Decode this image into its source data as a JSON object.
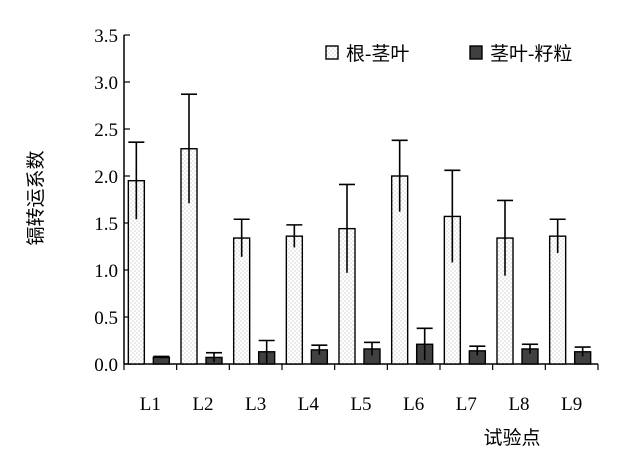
{
  "chart_data": {
    "type": "bar",
    "title": "",
    "xlabel": "试验点",
    "ylabel": "镉转运系数",
    "categories": [
      "L1",
      "L2",
      "L3",
      "L4",
      "L5",
      "L6",
      "L7",
      "L8",
      "L9"
    ],
    "ylim": [
      0,
      3.5
    ],
    "yticks": [
      "0.0",
      "0.5",
      "1.0",
      "1.5",
      "2.0",
      "2.5",
      "3.0",
      "3.5"
    ],
    "grid": false,
    "legend_position": "top-right",
    "series": [
      {
        "name": "根-茎叶",
        "color": "#ffffff",
        "pattern": "dotted",
        "values": [
          1.95,
          2.29,
          1.34,
          1.36,
          1.44,
          2.0,
          1.57,
          1.34,
          1.36
        ],
        "error": [
          0.41,
          0.58,
          0.2,
          0.12,
          0.47,
          0.38,
          0.49,
          0.4,
          0.18
        ]
      },
      {
        "name": "茎叶-籽粒",
        "color": "#404040",
        "pattern": "solid",
        "values": [
          0.07,
          0.07,
          0.13,
          0.15,
          0.16,
          0.21,
          0.14,
          0.16,
          0.13
        ],
        "error": [
          0.01,
          0.05,
          0.12,
          0.05,
          0.07,
          0.17,
          0.05,
          0.05,
          0.05
        ]
      }
    ]
  }
}
